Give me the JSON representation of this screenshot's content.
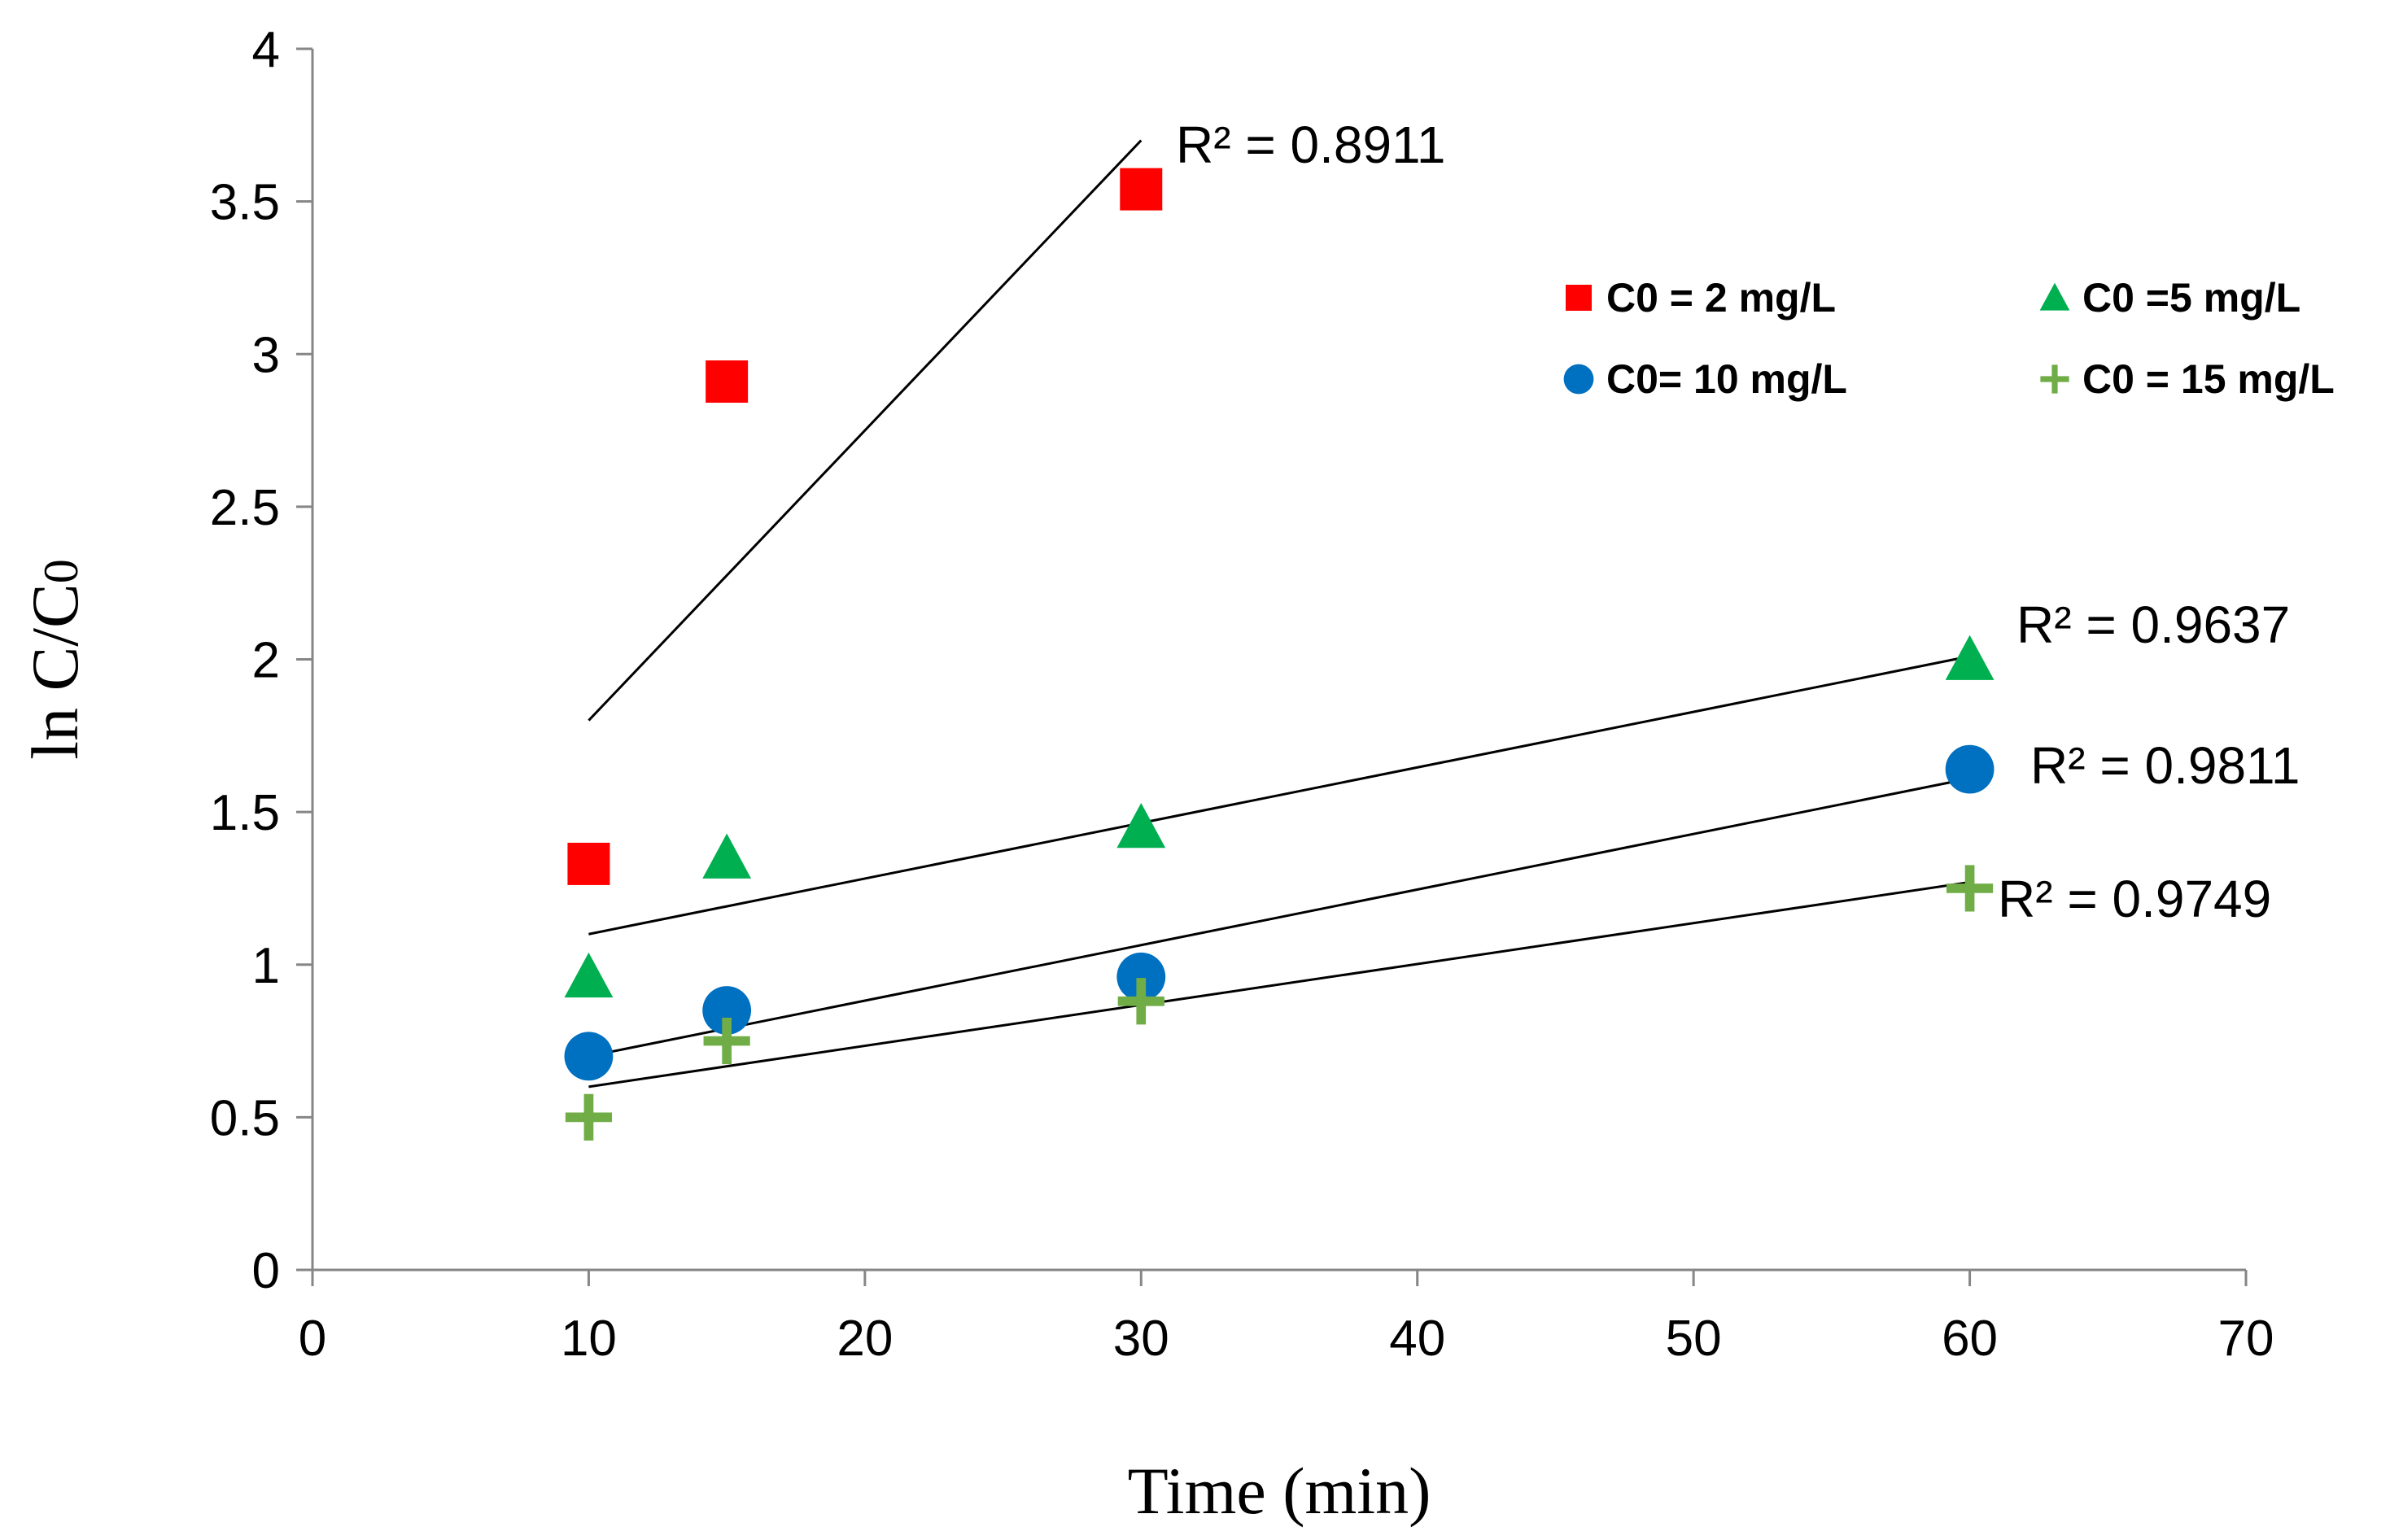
{
  "chart_data": {
    "type": "scatter",
    "title": "",
    "xlabel": "Time (min)",
    "ylabel": "ln C/C0",
    "xlim": [
      0,
      70
    ],
    "ylim": [
      0,
      4
    ],
    "xticks": [
      0,
      10,
      20,
      30,
      40,
      50,
      60,
      70
    ],
    "yticks": [
      0,
      0.5,
      1,
      1.5,
      2,
      2.5,
      3,
      3.5,
      4
    ],
    "grid": false,
    "legend_position": "top-right",
    "series": [
      {
        "name": "C0 = 2 mg/L",
        "marker": "square",
        "color": "#FF0000",
        "x": [
          10,
          15,
          30
        ],
        "y": [
          1.33,
          2.91,
          3.54
        ],
        "trendline": {
          "x": [
            10,
            30
          ],
          "y": [
            1.8,
            3.7
          ]
        },
        "r2_label": "R² = 0.8911"
      },
      {
        "name": "C0 =5 mg/L",
        "marker": "triangle",
        "color": "#00B050",
        "x": [
          10,
          15,
          30,
          60
        ],
        "y": [
          0.96,
          1.35,
          1.45,
          2.0
        ],
        "trendline": {
          "x": [
            10,
            60
          ],
          "y": [
            1.1,
            2.01
          ]
        },
        "r2_label": "R² = 0.9637"
      },
      {
        "name": "C0= 10 mg/L",
        "marker": "circle",
        "color": "#0070C0",
        "x": [
          10,
          15,
          30,
          60
        ],
        "y": [
          0.7,
          0.85,
          0.96,
          1.64
        ],
        "trendline": {
          "x": [
            10,
            60
          ],
          "y": [
            0.7,
            1.61
          ]
        },
        "r2_label": "R² = 0.9811"
      },
      {
        "name": "C0 = 15 mg/L",
        "marker": "plus",
        "color": "#70AD47",
        "x": [
          10,
          15,
          30,
          60
        ],
        "y": [
          0.5,
          0.75,
          0.88,
          1.25
        ],
        "trendline": {
          "x": [
            10,
            60
          ],
          "y": [
            0.6,
            1.27
          ]
        },
        "r2_label": "R² = 0.9749"
      }
    ]
  }
}
